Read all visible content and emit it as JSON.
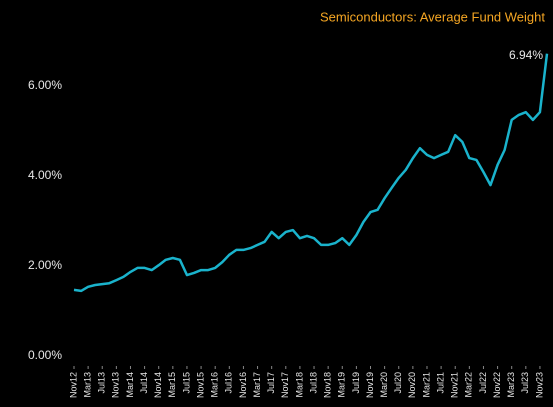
{
  "chart_data": {
    "type": "line",
    "title": "Semiconductors:  Average Fund Weight",
    "categories": [
      "Nov12",
      null,
      "Mar13",
      null,
      "Jul13",
      null,
      "Nov13",
      null,
      "Mar14",
      null,
      "Jul14",
      null,
      "Nov14",
      null,
      "Mar15",
      null,
      "Jul15",
      null,
      "Nov15",
      null,
      "Mar16",
      null,
      "Jul16",
      null,
      "Nov16",
      null,
      "Mar17",
      null,
      "Jul17",
      null,
      "Nov17",
      null,
      "Mar18",
      null,
      "Jul18",
      null,
      "Nov18",
      null,
      "Mar19",
      null,
      "Jul19",
      null,
      "Nov19",
      null,
      "Mar20",
      null,
      "Jul20",
      null,
      "Nov20",
      null,
      "Mar21",
      null,
      "Jul21",
      null,
      "Nov21",
      null,
      "Mar22",
      null,
      "Jul22",
      null,
      "Nov22",
      null,
      "Mar23",
      null,
      "Jul23",
      null,
      "Nov23",
      null
    ],
    "values": [
      1.69,
      1.67,
      1.76,
      1.8,
      1.82,
      1.84,
      1.91,
      1.98,
      2.09,
      2.18,
      2.18,
      2.13,
      2.24,
      2.36,
      2.4,
      2.36,
      2.02,
      2.07,
      2.13,
      2.13,
      2.18,
      2.31,
      2.47,
      2.58,
      2.58,
      2.62,
      2.69,
      2.76,
      2.98,
      2.84,
      2.98,
      3.02,
      2.84,
      2.89,
      2.84,
      2.69,
      2.69,
      2.73,
      2.84,
      2.69,
      2.91,
      3.2,
      3.42,
      3.47,
      3.73,
      3.96,
      4.18,
      4.36,
      4.62,
      4.84,
      4.69,
      4.62,
      4.69,
      4.76,
      5.13,
      4.98,
      4.62,
      4.58,
      4.31,
      4.02,
      4.47,
      4.8,
      5.47,
      5.58,
      5.64,
      5.47,
      5.64,
      6.94
    ],
    "value_labels": [
      null,
      null,
      null,
      null,
      null,
      null,
      null,
      null,
      null,
      null,
      null,
      null,
      null,
      null,
      null,
      null,
      null,
      null,
      null,
      null,
      null,
      null,
      null,
      null,
      null,
      null,
      null,
      null,
      null,
      null,
      null,
      null,
      null,
      null,
      null,
      null,
      null,
      null,
      null,
      null,
      null,
      null,
      null,
      null,
      null,
      null,
      null,
      null,
      null,
      null,
      null,
      null,
      null,
      null,
      null,
      null,
      null,
      null,
      null,
      null,
      null,
      null,
      null,
      null,
      null,
      null,
      null,
      "6.94%"
    ],
    "color": "#1ab3cc",
    "ylim": [
      0,
      7
    ],
    "yticks": [
      {
        "value": 0,
        "label": "0.00%"
      },
      {
        "value": 2,
        "label": "2.00%"
      },
      {
        "value": 4,
        "label": "4.00%"
      },
      {
        "value": 6,
        "label": "6.00%"
      }
    ],
    "grid": false
  }
}
